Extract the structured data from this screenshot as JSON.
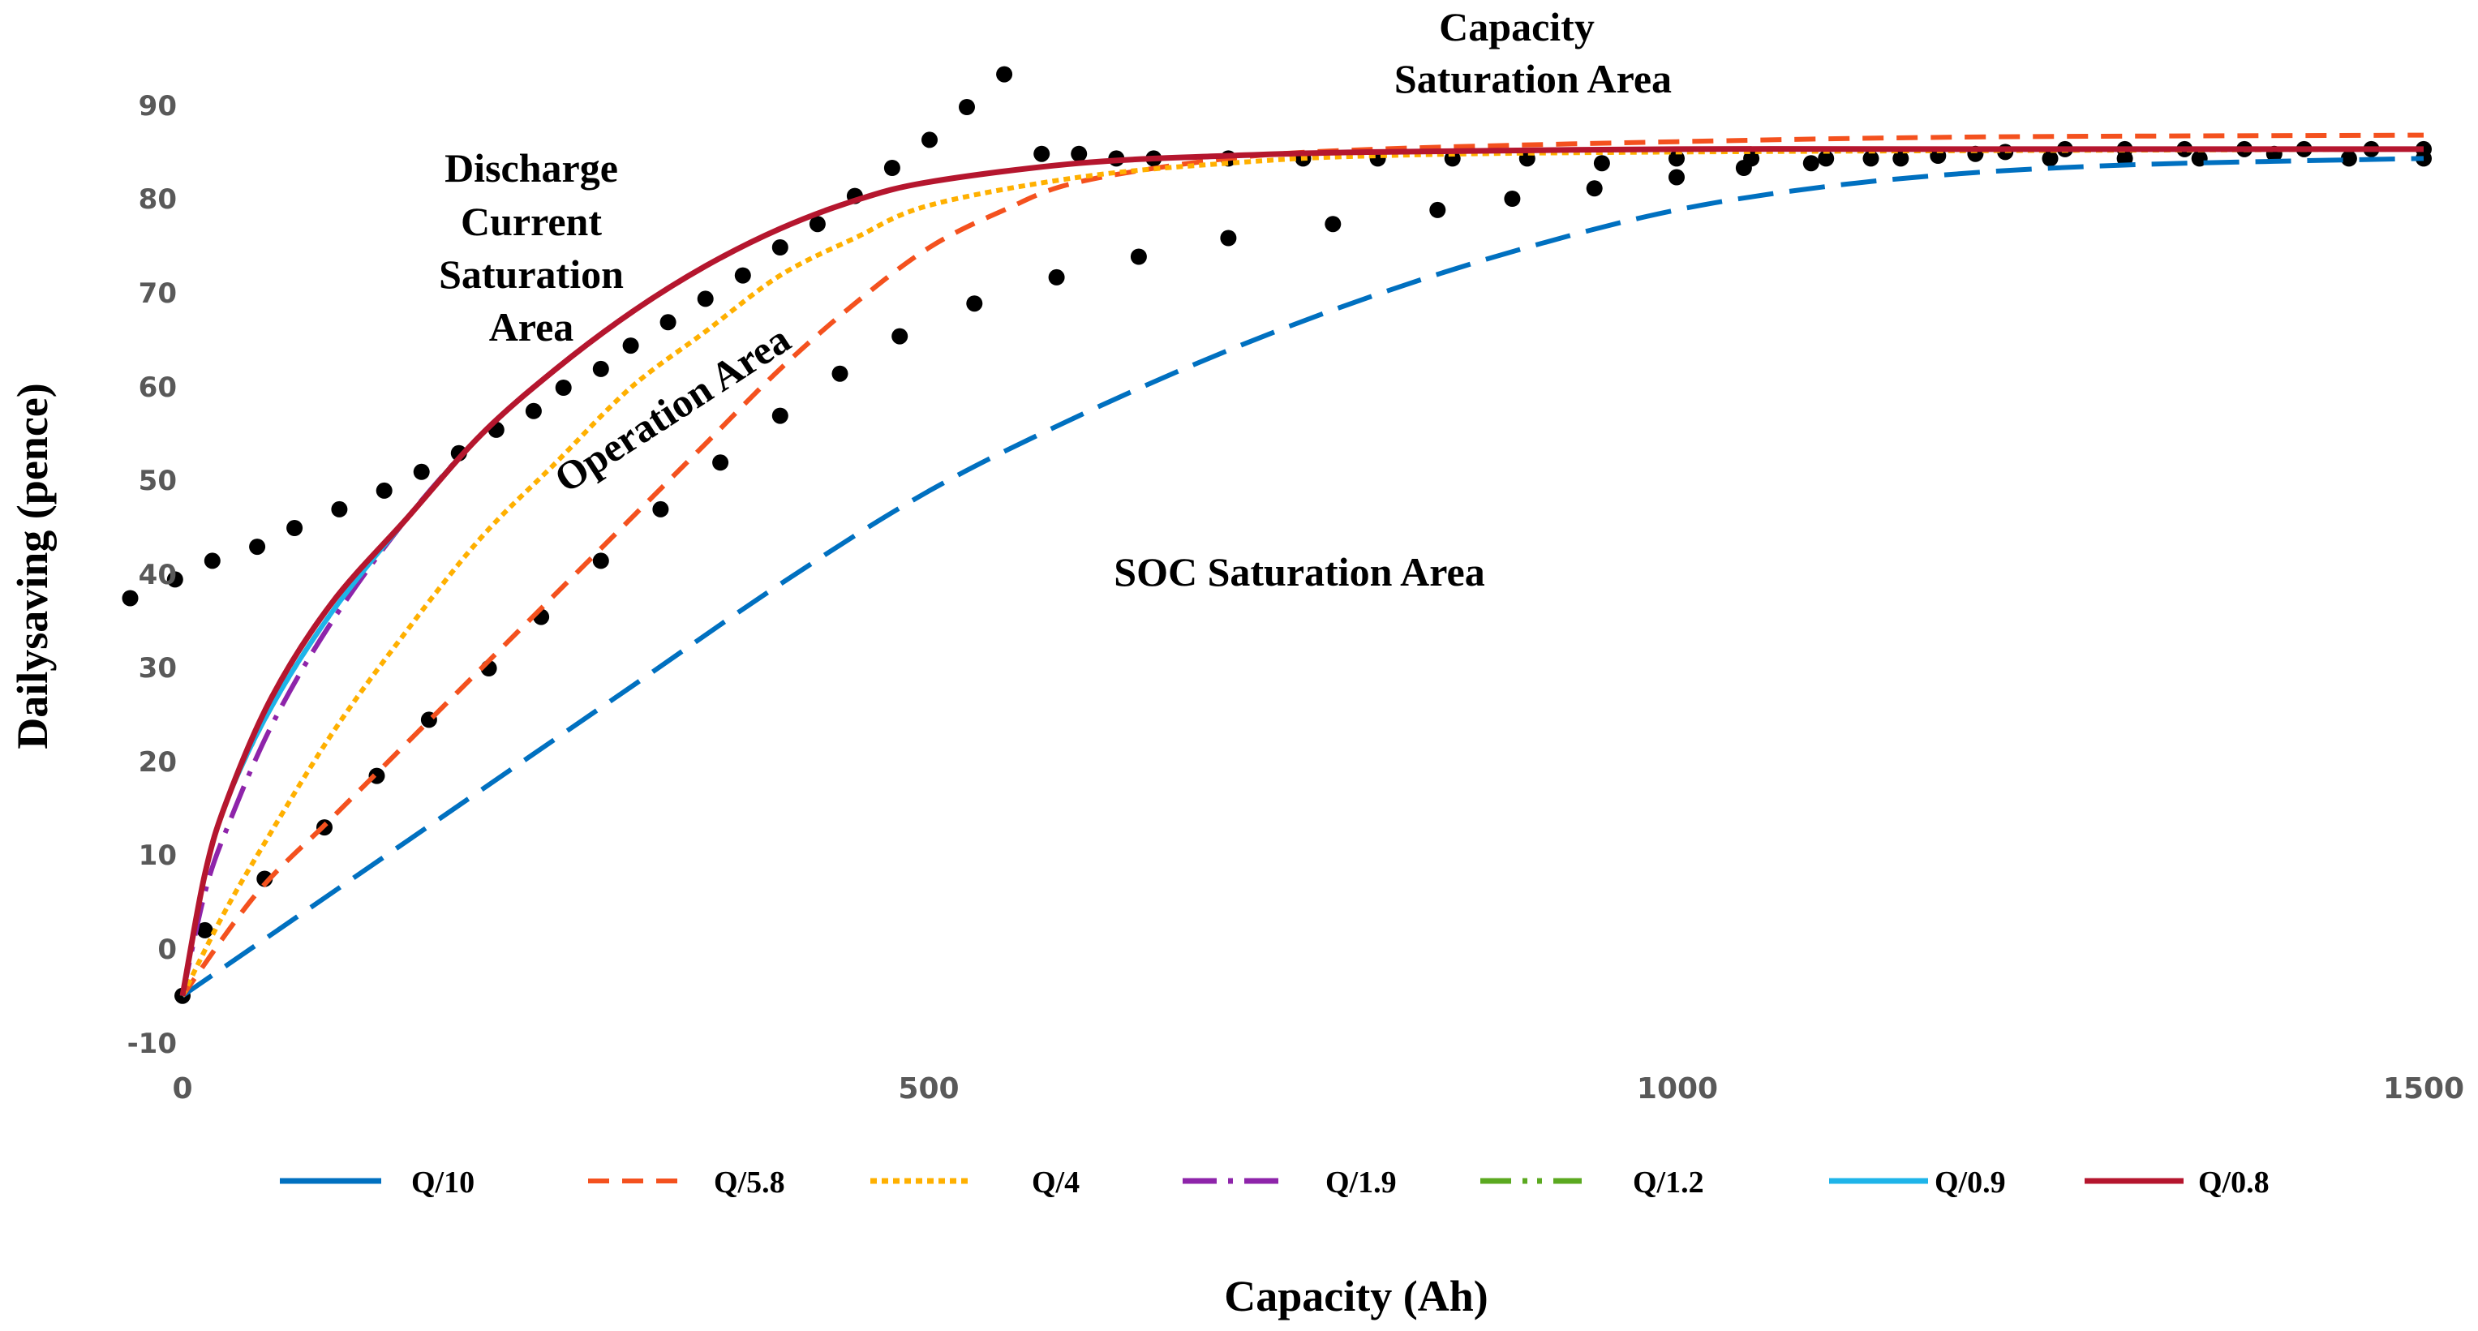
{
  "chart_data": {
    "type": "line",
    "title": "",
    "xlabel": "Capacity (Ah)",
    "ylabel": "Dailysaving (pence)",
    "xlim": [
      0,
      1500
    ],
    "ylim": [
      -10,
      90
    ],
    "x_ticks": [
      "0",
      "500",
      "1000",
      "1500"
    ],
    "y_ticks": [
      "-10",
      "0",
      "10",
      "20",
      "30",
      "40",
      "50",
      "60",
      "70",
      "80",
      "90"
    ],
    "grid": false,
    "legend_position": "bottom",
    "series": [
      {
        "name": "Q/10",
        "color": "#0070C0",
        "dash": "long-dash",
        "x": [
          0,
          100,
          200,
          300,
          400,
          500,
          600,
          700,
          800,
          900,
          1000,
          1100,
          1200,
          1300,
          1400,
          1500
        ],
        "y": [
          -5,
          6,
          17,
          28,
          39,
          49,
          57,
          64,
          70,
          75,
          79,
          81.5,
          83,
          83.8,
          84.2,
          84.5
        ]
      },
      {
        "name": "Q/5.8",
        "color": "#F4511E",
        "dash": "dash",
        "x": [
          0,
          50,
          100,
          150,
          200,
          250,
          300,
          350,
          400,
          450,
          500,
          550,
          600,
          700,
          800,
          1000,
          1200,
          1500
        ],
        "y": [
          -5,
          6,
          14,
          22,
          30,
          38,
          46,
          54,
          62,
          69,
          75,
          79,
          82,
          84.5,
          85.5,
          86.3,
          86.8,
          87
        ]
      },
      {
        "name": "Q/4",
        "color": "#FFB000",
        "dash": "dotted",
        "x": [
          0,
          25,
          50,
          100,
          150,
          200,
          250,
          300,
          350,
          400,
          450,
          500,
          600,
          700,
          800,
          1000,
          1500
        ],
        "y": [
          -5,
          3,
          10,
          23,
          34,
          44,
          52,
          60,
          66,
          72,
          76,
          79.5,
          82.5,
          84,
          84.8,
          85.2,
          85.5
        ]
      },
      {
        "name": "Q/1.9",
        "color": "#8E24AA",
        "dash": "dash-dot",
        "x": [
          0,
          15,
          30,
          60,
          100,
          150,
          200,
          250,
          300,
          350,
          400,
          450,
          500,
          600,
          700,
          800,
          1000,
          1200,
          1500
        ],
        "y": [
          -5,
          6,
          13,
          24,
          35,
          46,
          55,
          62,
          68,
          73,
          77,
          80,
          82,
          84,
          84.8,
          85.2,
          85.5,
          85.5,
          85.5
        ]
      },
      {
        "name": "Q/1.2",
        "color": "#5BA920",
        "dash": "dash-dot-dot",
        "x": [
          0,
          15,
          30,
          60,
          100,
          150,
          200,
          250,
          300,
          350,
          400,
          450,
          500,
          600,
          700,
          800,
          1000,
          1200,
          1500
        ],
        "y": [
          -5,
          8,
          16,
          26,
          36,
          46,
          55,
          62,
          68,
          73,
          77,
          80,
          82,
          84,
          84.8,
          85.2,
          85.5,
          85.5,
          85.5
        ]
      },
      {
        "name": "Q/0.9",
        "color": "#1EB4E9",
        "dash": "solid",
        "x": [
          0,
          15,
          30,
          60,
          100,
          150,
          200,
          250,
          300,
          350,
          400,
          450,
          500,
          600,
          700,
          800,
          1000,
          1200,
          1500
        ],
        "y": [
          -5,
          8,
          16,
          26,
          36,
          46,
          55,
          62,
          68,
          73,
          77,
          80,
          82,
          84,
          84.8,
          85.2,
          85.5,
          85.5,
          85.5
        ]
      },
      {
        "name": "Q/0.8",
        "color": "#B5162E",
        "dash": "solid",
        "x": [
          0,
          15,
          30,
          60,
          100,
          150,
          200,
          250,
          300,
          350,
          400,
          450,
          500,
          600,
          700,
          800,
          1000,
          1200,
          1500
        ],
        "y": [
          -5,
          8,
          16,
          27,
          37,
          46,
          55,
          62,
          68,
          73,
          77,
          80,
          82,
          84,
          84.8,
          85.2,
          85.5,
          85.5,
          85.5
        ]
      }
    ],
    "dotted_boundaries": [
      {
        "name": "discharge-current-boundary",
        "x": [
          -35,
          -5,
          20,
          50,
          75,
          105,
          135,
          160,
          185,
          210,
          235,
          255,
          280,
          300,
          325,
          350,
          375,
          400,
          425,
          450,
          475,
          500,
          525,
          550,
          575,
          600,
          625,
          650,
          700,
          750,
          800,
          850,
          900,
          950,
          1000,
          1050,
          1100,
          1150,
          1200,
          1250,
          1300,
          1350,
          1400,
          1450,
          1500
        ],
        "y": [
          37.5,
          39.5,
          41.5,
          43,
          45,
          47,
          49,
          51,
          53,
          55.5,
          57.5,
          60,
          62,
          64.5,
          67,
          69.5,
          72,
          75,
          77.5,
          80.5,
          83.5,
          86.5,
          90,
          93.5,
          85,
          85,
          84.5,
          84.5,
          84.5,
          84.5,
          84.5,
          84.5,
          84.5,
          84,
          84.5,
          84.5,
          84.5,
          84.5,
          85,
          84.5,
          84.5,
          84.5,
          85,
          84.5,
          84.5
        ]
      },
      {
        "name": "soc-boundary",
        "x": [
          0,
          15,
          55,
          95,
          130,
          165,
          205,
          240,
          280,
          320,
          360,
          400,
          440,
          480,
          530,
          585,
          640,
          700,
          770,
          840,
          890,
          945,
          1000,
          1045,
          1090,
          1130,
          1175,
          1220,
          1260,
          1300,
          1340,
          1380,
          1420,
          1465,
          1500
        ],
        "y": [
          -5,
          2,
          7.5,
          13,
          18.5,
          24.5,
          30,
          35.5,
          41.5,
          47,
          52,
          57,
          61.5,
          65.5,
          69,
          71.8,
          74,
          76,
          77.5,
          79,
          80.2,
          81.3,
          82.5,
          83.5,
          84,
          84.5,
          84.8,
          85.2,
          85.5,
          85.5,
          85.5,
          85.5,
          85.5,
          85.5,
          85.5
        ]
      }
    ],
    "annotations": [
      {
        "id": "capacity",
        "lines": [
          "Capacity",
          "Saturation Area"
        ]
      },
      {
        "id": "discharge",
        "lines": [
          "Discharge",
          "Current",
          "Saturation",
          "Area"
        ]
      },
      {
        "id": "operation",
        "lines": [
          "Operation Area"
        ]
      },
      {
        "id": "soc",
        "lines": [
          "SOC Saturation Area"
        ]
      }
    ]
  }
}
